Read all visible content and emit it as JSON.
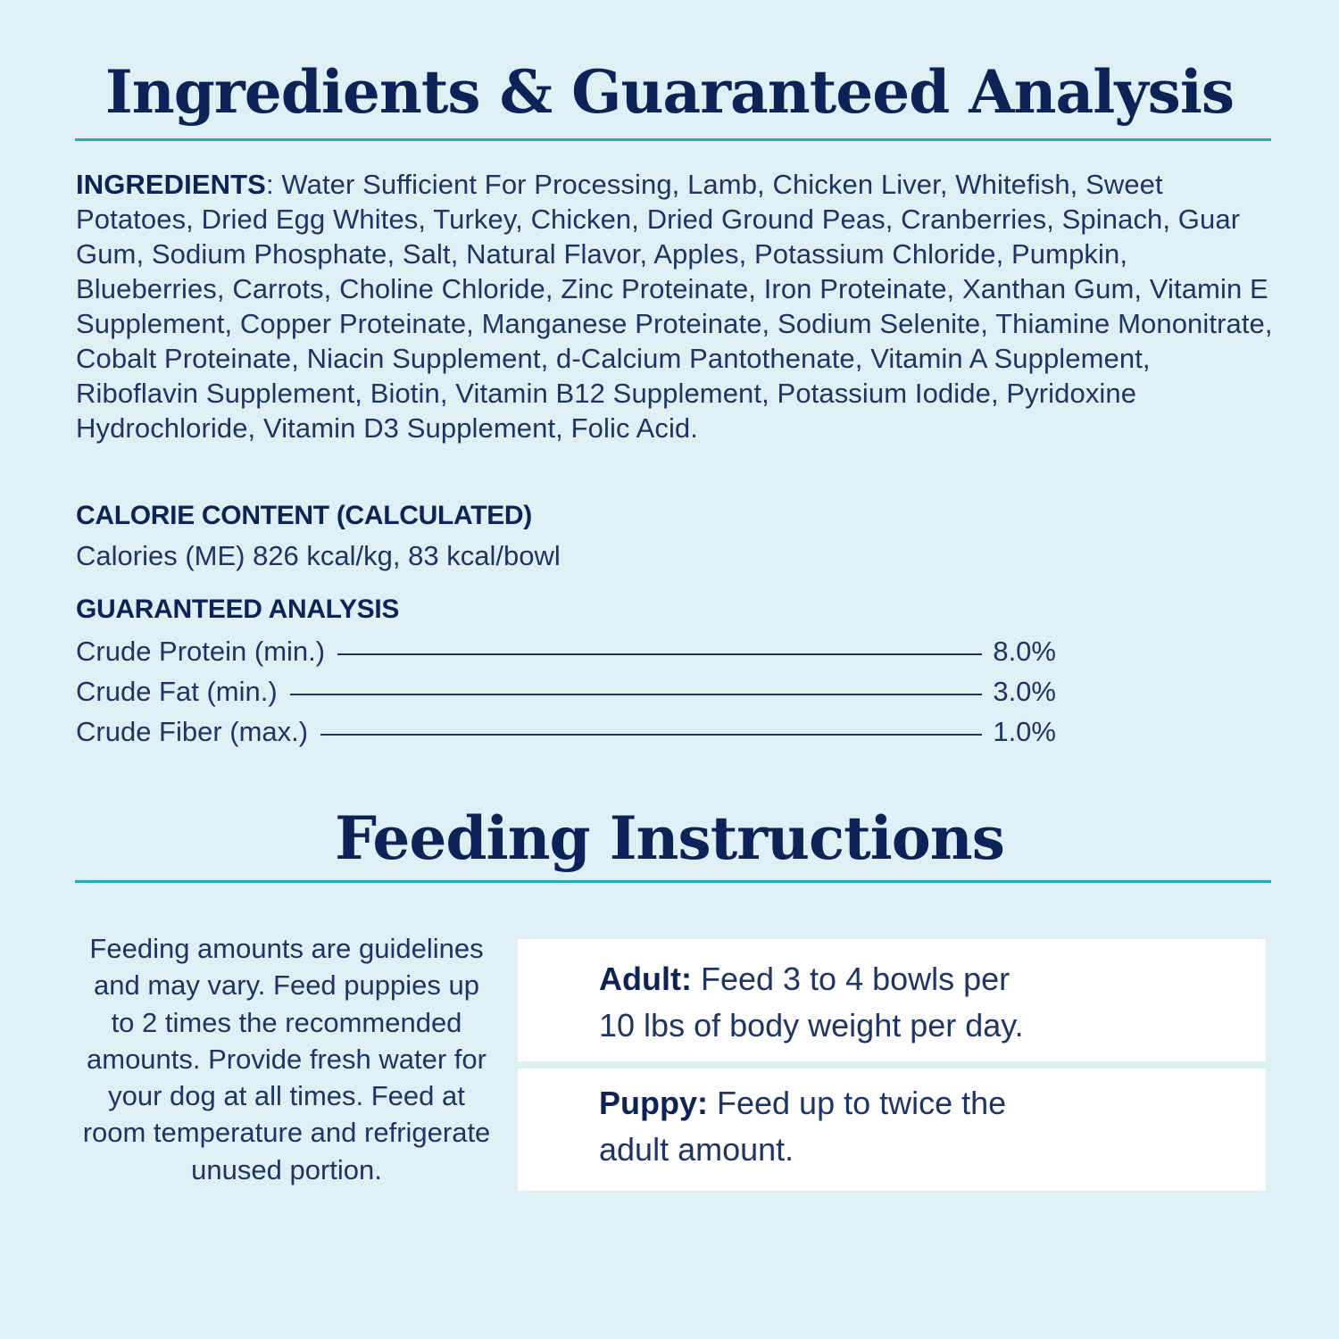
{
  "ingredients_section": {
    "title": "Ingredients & Guaranteed Analysis",
    "ingredients_label": "INGREDIENTS",
    "ingredients_text": ": Water Sufficient For Processing, Lamb, Chicken Liver, Whitefish, Sweet Potatoes, Dried Egg Whites, Turkey, Chicken, Dried Ground Peas, Cranberries, Spinach, Guar Gum, Sodium Phosphate, Salt, Natural Flavor, Apples, Potassium Chloride, Pumpkin, Blueberries, Carrots, Choline Chloride, Zinc Proteinate, Iron Proteinate, Xanthan Gum, Vitamin E Supplement, Copper Proteinate, Manganese Proteinate, Sodium Selenite, Thiamine Mononitrate, Cobalt Proteinate, Niacin Supplement, d-Calcium Pantothenate, Vitamin A Supplement, Riboflavin Supplement, Biotin, Vitamin B12 Supplement, Potassium Iodide, Pyridoxine Hydrochloride, Vitamin D3 Supplement, Folic Acid.",
    "calorie_heading": "CALORIE CONTENT (CALCULATED)",
    "calorie_text": "Calories (ME) 826 kcal/kg, 83 kcal/bowl",
    "analysis_heading": "GUARANTEED ANALYSIS",
    "analysis": [
      {
        "name": "Crude Protein (min.)",
        "value": "8.0%"
      },
      {
        "name": "Crude Fat (min.)",
        "value": "3.0%"
      },
      {
        "name": "Crude Fiber (max.)",
        "value": "1.0%"
      }
    ]
  },
  "feeding_section": {
    "title": "Feeding Instructions",
    "note": "Feeding amounts are guidelines and may vary. Feed puppies up to 2 times the recommended amounts. Provide fresh water for your dog at all times. Feed at room temperature and refrigerate unused portion.",
    "adult": {
      "label": "Adult:",
      "line1": " Feed 3 to 4 bowls per",
      "line2": "10 lbs of body weight per day."
    },
    "puppy": {
      "label": "Puppy:",
      "line1": " Feed up to twice the",
      "line2": "adult amount."
    }
  },
  "colors": {
    "background": "#dff0f4",
    "navy": "#0b2358",
    "teal_rule": "#27a9b7",
    "box": "#ffffff"
  }
}
